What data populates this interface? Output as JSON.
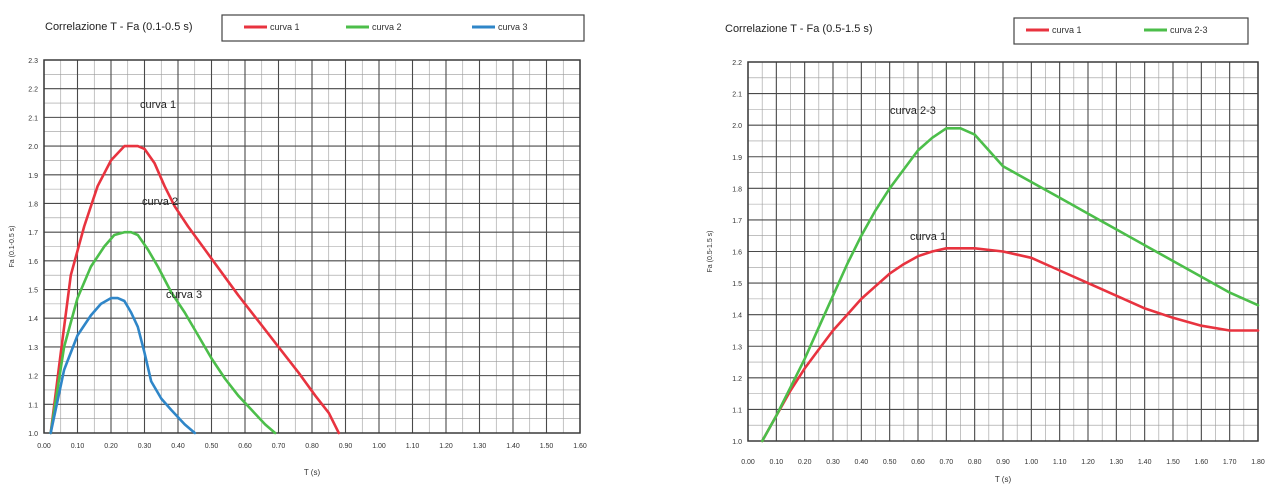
{
  "chart_data": [
    {
      "type": "line",
      "title": "Correlazione T - Fa (0.1-0.5 s)",
      "xlabel": "T (s)",
      "ylabel": "Fa (0.1-0.5 s)",
      "xlim": [
        0.0,
        1.6
      ],
      "ylim": [
        1.0,
        2.3
      ],
      "x_ticks": [
        "0.00",
        "0.10",
        "0.20",
        "0.30",
        "0.40",
        "0.50",
        "0.60",
        "0.70",
        "0.80",
        "0.90",
        "1.00",
        "1.10",
        "1.20",
        "1.30",
        "1.40",
        "1.50",
        "1.60"
      ],
      "y_ticks": [
        "1.0",
        "1.1",
        "1.2",
        "1.3",
        "1.4",
        "1.5",
        "1.6",
        "1.7",
        "1.8",
        "1.9",
        "2.0",
        "2.1",
        "2.2",
        "2.3"
      ],
      "legend": [
        "curva 1",
        "curva 2",
        "curva 3"
      ],
      "series": [
        {
          "name": "curva 1",
          "color": "#e8333f",
          "x": [
            0.02,
            0.05,
            0.08,
            0.12,
            0.16,
            0.2,
            0.24,
            0.26,
            0.28,
            0.3,
            0.33,
            0.36,
            0.39,
            0.43,
            0.48,
            0.53,
            0.58,
            0.64,
            0.7,
            0.76,
            0.81,
            0.85,
            0.88
          ],
          "y": [
            1.0,
            1.28,
            1.55,
            1.72,
            1.86,
            1.95,
            2.0,
            2.0,
            2.0,
            1.99,
            1.94,
            1.86,
            1.79,
            1.72,
            1.64,
            1.56,
            1.48,
            1.39,
            1.3,
            1.21,
            1.13,
            1.07,
            1.0
          ]
        },
        {
          "name": "curva 2",
          "color": "#4cbe4a",
          "x": [
            0.02,
            0.06,
            0.1,
            0.14,
            0.18,
            0.21,
            0.24,
            0.26,
            0.28,
            0.31,
            0.34,
            0.38,
            0.42,
            0.46,
            0.5,
            0.54,
            0.58,
            0.62,
            0.66,
            0.69
          ],
          "y": [
            1.0,
            1.3,
            1.47,
            1.58,
            1.65,
            1.69,
            1.7,
            1.7,
            1.69,
            1.64,
            1.58,
            1.49,
            1.42,
            1.34,
            1.26,
            1.19,
            1.13,
            1.08,
            1.03,
            1.0
          ]
        },
        {
          "name": "curva 3",
          "color": "#2f86c8",
          "x": [
            0.02,
            0.06,
            0.1,
            0.14,
            0.17,
            0.2,
            0.22,
            0.24,
            0.26,
            0.28,
            0.3,
            0.32,
            0.35,
            0.38,
            0.42,
            0.45
          ],
          "y": [
            1.0,
            1.22,
            1.34,
            1.41,
            1.45,
            1.47,
            1.47,
            1.46,
            1.42,
            1.37,
            1.28,
            1.18,
            1.12,
            1.08,
            1.03,
            1.0
          ]
        }
      ],
      "annotations": [
        "curva 1",
        "curva 2",
        "curva 3"
      ]
    },
    {
      "type": "line",
      "title": "Correlazione T - Fa (0.5-1.5 s)",
      "xlabel": "T (s)",
      "ylabel": "Fa (0.5-1.5 s)",
      "xlim": [
        0.0,
        1.8
      ],
      "ylim": [
        1.0,
        2.2
      ],
      "x_ticks": [
        "0.00",
        "0.10",
        "0.20",
        "0.30",
        "0.40",
        "0.50",
        "0.60",
        "0.70",
        "0.80",
        "0.90",
        "1.00",
        "1.10",
        "1.20",
        "1.30",
        "1.40",
        "1.50",
        "1.60",
        "1.70",
        "1.80"
      ],
      "y_ticks": [
        "1.0",
        "1.1",
        "1.2",
        "1.3",
        "1.4",
        "1.5",
        "1.6",
        "1.7",
        "1.8",
        "1.9",
        "2.0",
        "2.1",
        "2.2"
      ],
      "legend": [
        "curva 1",
        "curva 2-3"
      ],
      "series": [
        {
          "name": "curva 1",
          "color": "#e8333f",
          "x": [
            0.05,
            0.1,
            0.15,
            0.2,
            0.25,
            0.3,
            0.35,
            0.4,
            0.45,
            0.5,
            0.55,
            0.6,
            0.65,
            0.7,
            0.75,
            0.8,
            0.9,
            1.0,
            1.1,
            1.2,
            1.3,
            1.4,
            1.5,
            1.6,
            1.7,
            1.8
          ],
          "y": [
            1.0,
            1.08,
            1.16,
            1.23,
            1.29,
            1.35,
            1.4,
            1.45,
            1.49,
            1.53,
            1.56,
            1.585,
            1.6,
            1.61,
            1.61,
            1.61,
            1.6,
            1.58,
            1.54,
            1.5,
            1.46,
            1.42,
            1.39,
            1.365,
            1.35,
            1.35
          ]
        },
        {
          "name": "curva 2-3",
          "color": "#4cbe4a",
          "x": [
            0.05,
            0.1,
            0.15,
            0.2,
            0.25,
            0.3,
            0.35,
            0.4,
            0.45,
            0.5,
            0.55,
            0.6,
            0.65,
            0.7,
            0.75,
            0.8,
            0.9,
            1.0,
            1.1,
            1.2,
            1.3,
            1.4,
            1.5,
            1.6,
            1.7,
            1.8
          ],
          "y": [
            1.0,
            1.08,
            1.17,
            1.26,
            1.36,
            1.46,
            1.56,
            1.65,
            1.73,
            1.8,
            1.86,
            1.92,
            1.96,
            1.99,
            1.99,
            1.97,
            1.87,
            1.82,
            1.77,
            1.72,
            1.67,
            1.62,
            1.57,
            1.52,
            1.47,
            1.43
          ]
        }
      ],
      "annotations": [
        "curva 2-3",
        "curva 1"
      ]
    }
  ]
}
